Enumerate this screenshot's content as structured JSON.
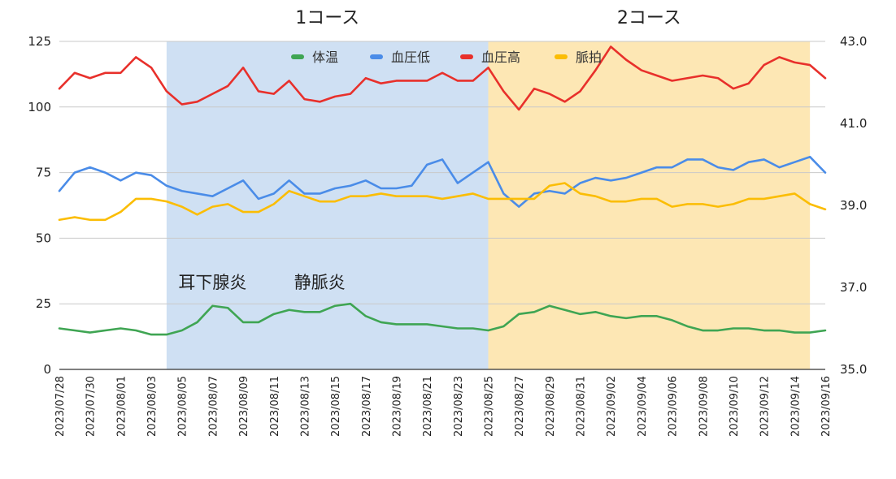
{
  "chart_data": {
    "type": "line",
    "x": [
      "2023/07/28",
      "2023/07/29",
      "2023/07/30",
      "2023/07/31",
      "2023/08/01",
      "2023/08/02",
      "2023/08/03",
      "2023/08/04",
      "2023/08/05",
      "2023/08/06",
      "2023/08/07",
      "2023/08/08",
      "2023/08/09",
      "2023/08/10",
      "2023/08/11",
      "2023/08/12",
      "2023/08/13",
      "2023/08/14",
      "2023/08/15",
      "2023/08/16",
      "2023/08/17",
      "2023/08/18",
      "2023/08/19",
      "2023/08/20",
      "2023/08/21",
      "2023/08/22",
      "2023/08/23",
      "2023/08/24",
      "2023/08/25",
      "2023/08/26",
      "2023/08/27",
      "2023/08/28",
      "2023/08/29",
      "2023/08/30",
      "2023/08/31",
      "2023/09/01",
      "2023/09/02",
      "2023/09/03",
      "2023/09/04",
      "2023/09/05",
      "2023/09/06",
      "2023/09/07",
      "2023/09/08",
      "2023/09/09",
      "2023/09/10",
      "2023/09/11",
      "2023/09/12",
      "2023/09/13",
      "2023/09/14",
      "2023/09/15",
      "2023/09/16"
    ],
    "x_tick_labels": [
      "2023/07/28",
      "2023/07/30",
      "2023/08/01",
      "2023/08/03",
      "2023/08/05",
      "2023/08/07",
      "2023/08/09",
      "2023/08/11",
      "2023/08/13",
      "2023/08/15",
      "2023/08/17",
      "2023/08/19",
      "2023/08/21",
      "2023/08/23",
      "2023/08/25",
      "2023/08/27",
      "2023/08/29",
      "2023/08/31",
      "2023/09/02",
      "2023/09/04",
      "2023/09/06",
      "2023/09/08",
      "2023/09/10",
      "2023/09/12",
      "2023/09/14",
      "2023/09/16"
    ],
    "y_left": {
      "range": [
        0,
        125
      ],
      "ticks": [
        0,
        25,
        50,
        75,
        100,
        125
      ]
    },
    "y_right": {
      "range": [
        35.0,
        43.0
      ],
      "ticks": [
        "35.0",
        "37.0",
        "39.0",
        "41.0",
        "43.0"
      ]
    },
    "grid": true,
    "legend_position": "top-center",
    "series": [
      {
        "name": "体温",
        "axis": "right",
        "color": "#3fa553",
        "values": [
          36.0,
          35.95,
          35.9,
          35.95,
          36.0,
          35.95,
          35.85,
          35.85,
          35.95,
          36.15,
          36.55,
          36.5,
          36.15,
          36.15,
          36.35,
          36.45,
          36.4,
          36.4,
          36.55,
          36.6,
          36.3,
          36.15,
          36.1,
          36.1,
          36.1,
          36.05,
          36.0,
          36.0,
          35.95,
          36.05,
          36.35,
          36.4,
          36.55,
          36.45,
          36.35,
          36.4,
          36.3,
          36.25,
          36.3,
          36.3,
          36.2,
          36.05,
          35.95,
          35.95,
          36.0,
          36.0,
          35.95,
          35.95,
          35.9,
          35.9,
          35.95
        ]
      },
      {
        "name": "血圧低",
        "axis": "left",
        "color": "#4a8ce8",
        "values": [
          68,
          75,
          77,
          75,
          72,
          75,
          74,
          70,
          68,
          67,
          66,
          69,
          72,
          65,
          67,
          72,
          67,
          67,
          69,
          70,
          72,
          69,
          69,
          70,
          78,
          80,
          71,
          75,
          79,
          67,
          62,
          67,
          68,
          67,
          71,
          73,
          72,
          73,
          75,
          77,
          77,
          80,
          80,
          77,
          76,
          79,
          80,
          77,
          79,
          81,
          75
        ]
      },
      {
        "name": "血圧高",
        "axis": "left",
        "color": "#e8302b",
        "values": [
          107,
          113,
          111,
          113,
          113,
          119,
          115,
          106,
          101,
          102,
          105,
          108,
          115,
          106,
          105,
          110,
          103,
          102,
          104,
          105,
          111,
          109,
          110,
          110,
          110,
          113,
          110,
          110,
          115,
          106,
          99,
          107,
          105,
          102,
          106,
          114,
          123,
          118,
          114,
          112,
          110,
          111,
          112,
          111,
          107,
          109,
          116,
          119,
          117,
          116,
          111
        ]
      },
      {
        "name": "脈拍",
        "axis": "left",
        "color": "#fbbd04",
        "values": [
          57,
          58,
          57,
          57,
          60,
          65,
          65,
          64,
          62,
          59,
          62,
          63,
          60,
          60,
          63,
          68,
          66,
          64,
          64,
          66,
          66,
          67,
          66,
          66,
          66,
          65,
          66,
          67,
          65,
          65,
          65,
          65,
          70,
          71,
          67,
          66,
          64,
          64,
          65,
          65,
          62,
          63,
          63,
          62,
          63,
          65,
          65,
          66,
          67,
          63,
          61
        ]
      }
    ],
    "bands": [
      {
        "label": "1コース",
        "start": "2023/08/04",
        "end": "2023/08/25",
        "color": "#cfe0f3"
      },
      {
        "label": "2コース",
        "start": "2023/08/25",
        "end": "2023/09/15",
        "color": "#fde7b4"
      }
    ],
    "annotations": [
      {
        "text": "耳下腺炎",
        "x": "2023/08/07",
        "y": 31
      },
      {
        "text": "静脈炎",
        "x": "2023/08/14",
        "y": 31
      }
    ]
  }
}
